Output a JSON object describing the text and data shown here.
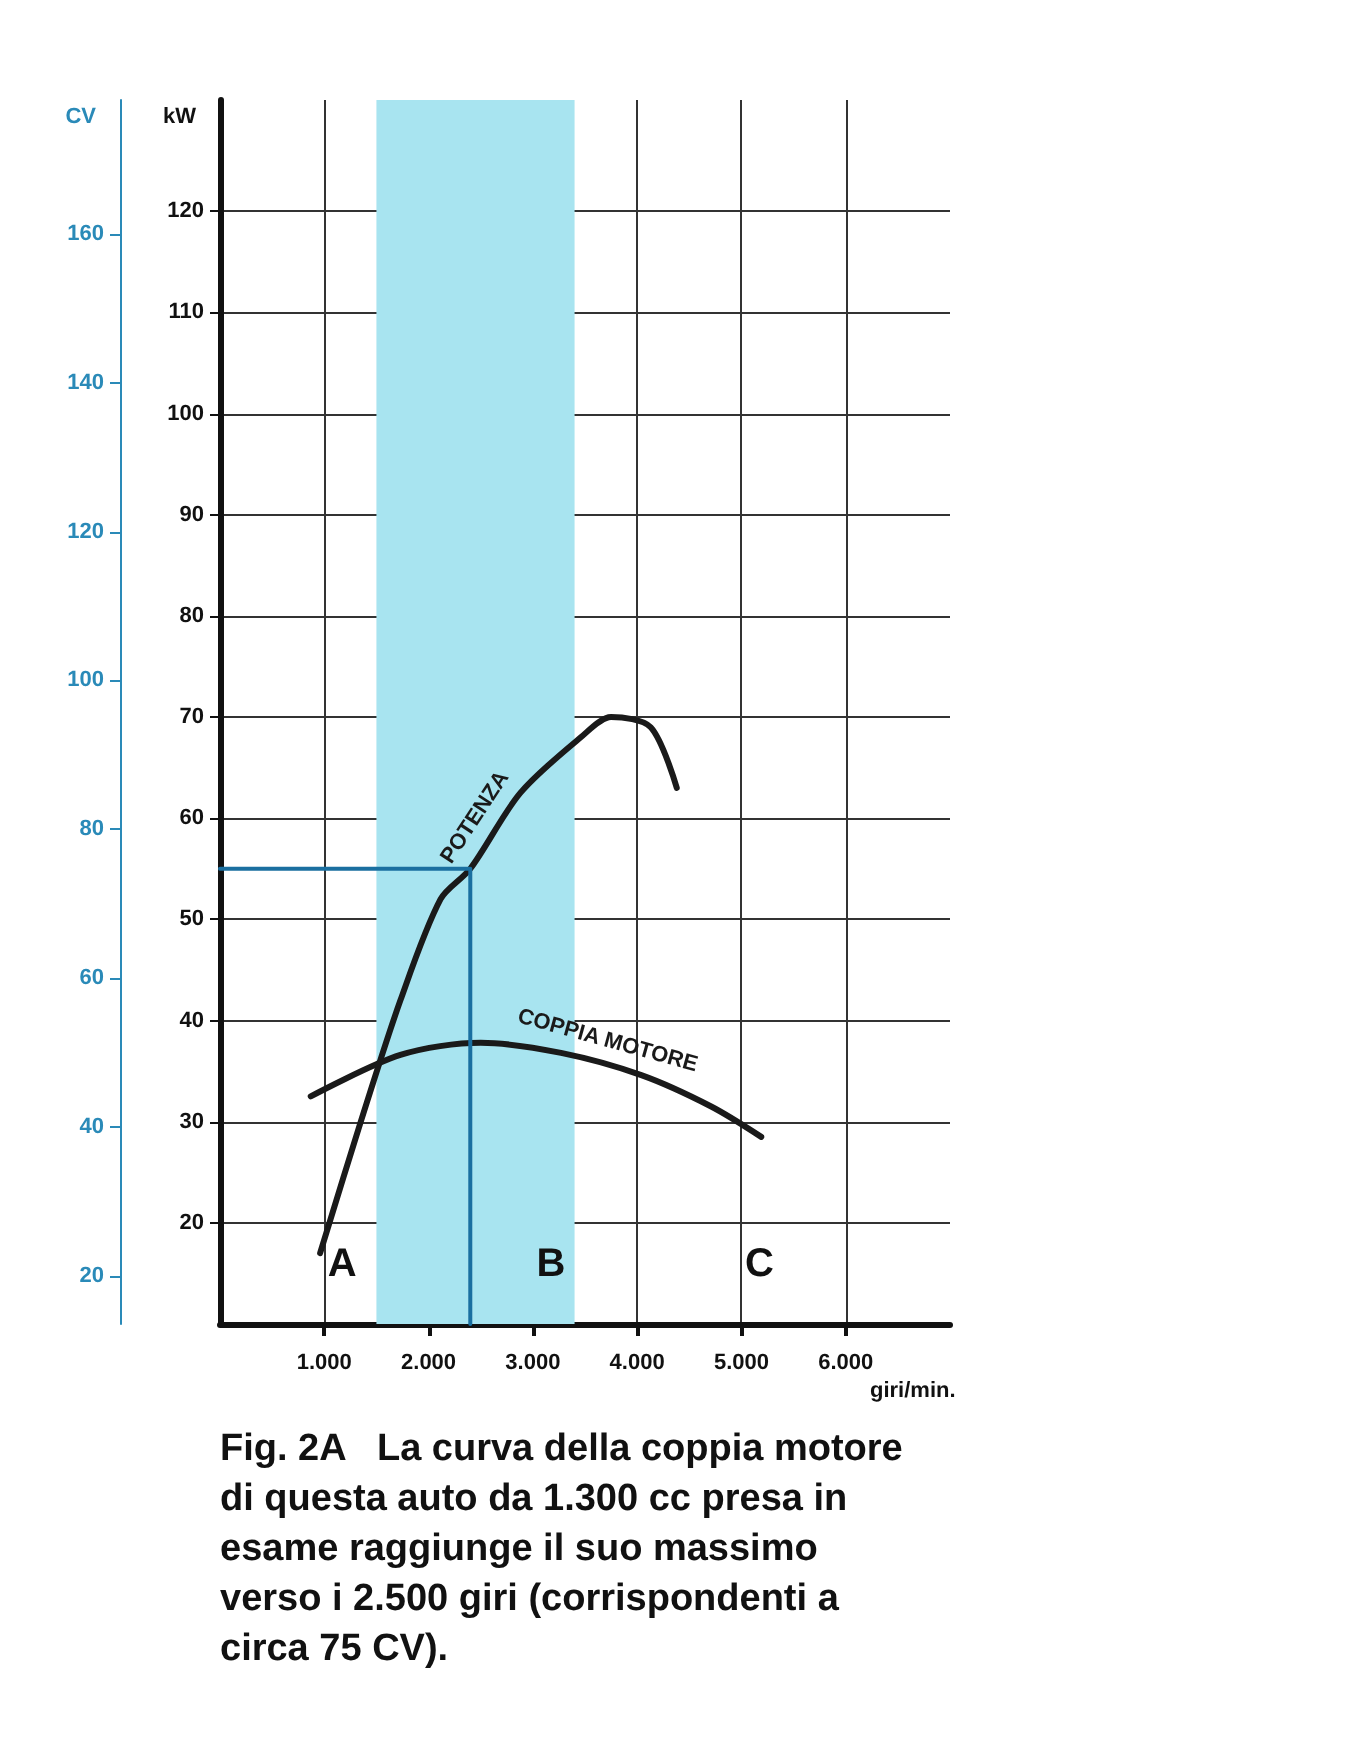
{
  "chart_data": {
    "type": "line",
    "xlabel": "giri/min.",
    "ylabel": "kW",
    "y2label": "CV",
    "xlim": [
      0,
      7000
    ],
    "xticks": [
      {
        "value": 1000,
        "label": "1.000"
      },
      {
        "value": 2000,
        "label": "2.000"
      },
      {
        "value": 3000,
        "label": "3.000"
      },
      {
        "value": 4000,
        "label": "4.000"
      },
      {
        "value": 5000,
        "label": "5.000"
      },
      {
        "value": 6000,
        "label": "6.000"
      }
    ],
    "ylim": [
      10,
      131
    ],
    "yticks": [
      20,
      30,
      40,
      50,
      60,
      70,
      80,
      90,
      100,
      110,
      120
    ],
    "y2lim": [
      13.5,
      178
    ],
    "y2ticks": [
      20,
      40,
      60,
      80,
      100,
      120,
      140,
      160
    ],
    "grid": true,
    "marker": "none",
    "line_style": "solid",
    "series": [
      {
        "name": "POTENZA",
        "color": "#1a1a1a",
        "x": [
          960,
          1350,
          1730,
          2115,
          2400,
          2880,
          3460,
          3750,
          4130,
          4380
        ],
        "values": [
          17,
          30,
          42,
          52,
          55,
          62.5,
          68,
          70,
          69,
          63
        ]
      },
      {
        "name": "COPPIA MOTORE",
        "color": "#1a1a1a",
        "x": [
          870,
          1730,
          2500,
          3270,
          4040,
          4710,
          5190
        ],
        "values": [
          32.5,
          36.6,
          37.8,
          36.8,
          34.6,
          31.5,
          28.5
        ]
      },
      {
        "color": "#1a6fa0",
        "x": [
          0,
          2400,
          2400
        ],
        "values": [
          55,
          55,
          10
        ]
      }
    ],
    "bands": [
      {
        "axis": "x",
        "from": 1500,
        "to": 3400,
        "color": "#a8e4f0"
      }
    ],
    "annotations": [
      "A",
      "B",
      "C",
      "Fig. 2A   La curva della coppia motore di questa auto da 1.300 cc presa in esame raggiunge il suo massimo verso i 2.500 giri (corrispondenti a circa 75 CV)."
    ]
  }
}
